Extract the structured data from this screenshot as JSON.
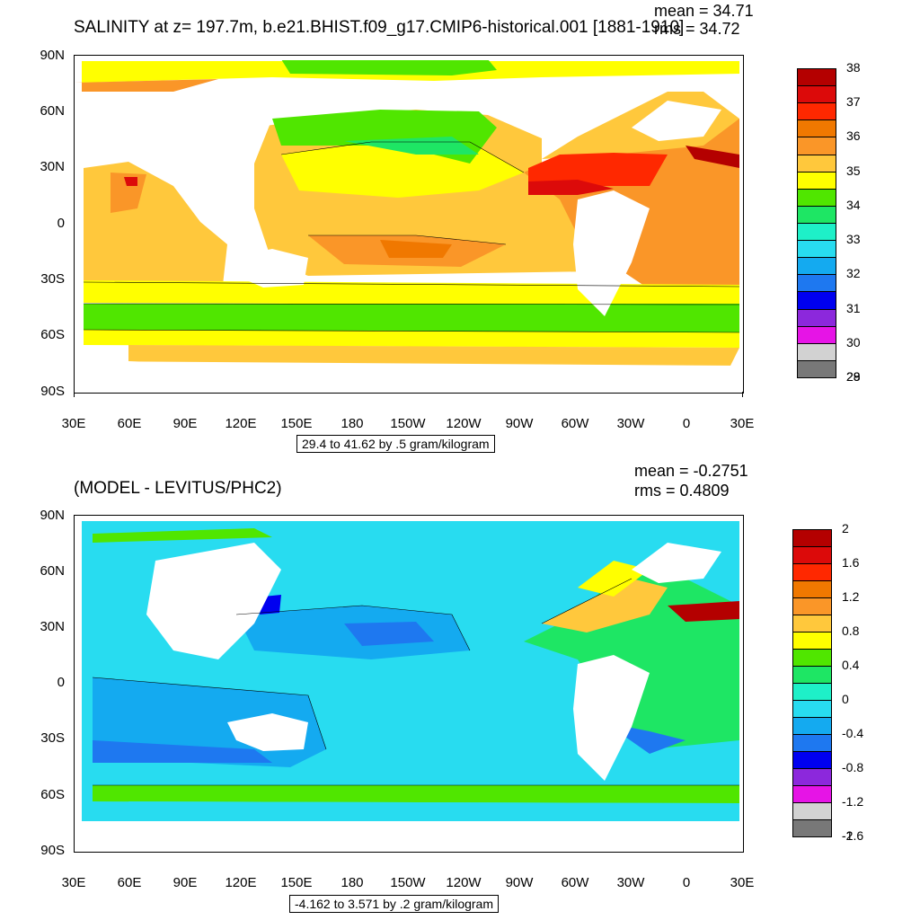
{
  "panel1": {
    "title": "SALINITY at z= 197.7m, b.e21.BHIST.f09_g17.CMIP6-historical.001 [1881-1910]",
    "mean": "mean = 34.71",
    "rms": "rms = 34.72",
    "range": "29.4 to 41.62 by .5 gram/kilogram",
    "colorbar_labels": [
      "38",
      "37",
      "36",
      "35",
      "34",
      "33",
      "32",
      "31",
      "30",
      "29",
      "28"
    ],
    "colorbar_colors": [
      "#b40000",
      "#dc0a0a",
      "#ff2800",
      "#f07800",
      "#fa9628",
      "#ffc83c",
      "#ffff00",
      "#50e600",
      "#1ee664",
      "#1ef0c8",
      "#28dcf0",
      "#14aaf0",
      "#1e78f0",
      "#0000f0",
      "#8c28dc",
      "#e614e6",
      "#d2d2d2",
      "#787878"
    ]
  },
  "panel2": {
    "title": "(MODEL - LEVITUS/PHC2)",
    "mean": "mean = -0.2751",
    "rms": "rms = 0.4809",
    "range": "-4.162 to 3.571 by .2 gram/kilogram",
    "colorbar_labels": [
      "2",
      "1.6",
      "1.2",
      "0.8",
      "0.4",
      "0",
      "-0.4",
      "-0.8",
      "-1.2",
      "-1.6",
      "-2"
    ],
    "colorbar_colors": [
      "#b40000",
      "#dc0a0a",
      "#ff2800",
      "#f07800",
      "#fa9628",
      "#ffc83c",
      "#ffff00",
      "#50e600",
      "#1ee664",
      "#1ef0c8",
      "#28dcf0",
      "#14aaf0",
      "#1e78f0",
      "#0000f0",
      "#8c28dc",
      "#e614e6",
      "#d2d2d2",
      "#787878"
    ]
  },
  "axes": {
    "lat_labels": [
      "90N",
      "60N",
      "30N",
      "0",
      "30S",
      "60S",
      "90S"
    ],
    "lon_labels": [
      "30E",
      "60E",
      "90E",
      "120E",
      "150E",
      "180",
      "150W",
      "120W",
      "90W",
      "60W",
      "30W",
      "0",
      "30E"
    ]
  }
}
